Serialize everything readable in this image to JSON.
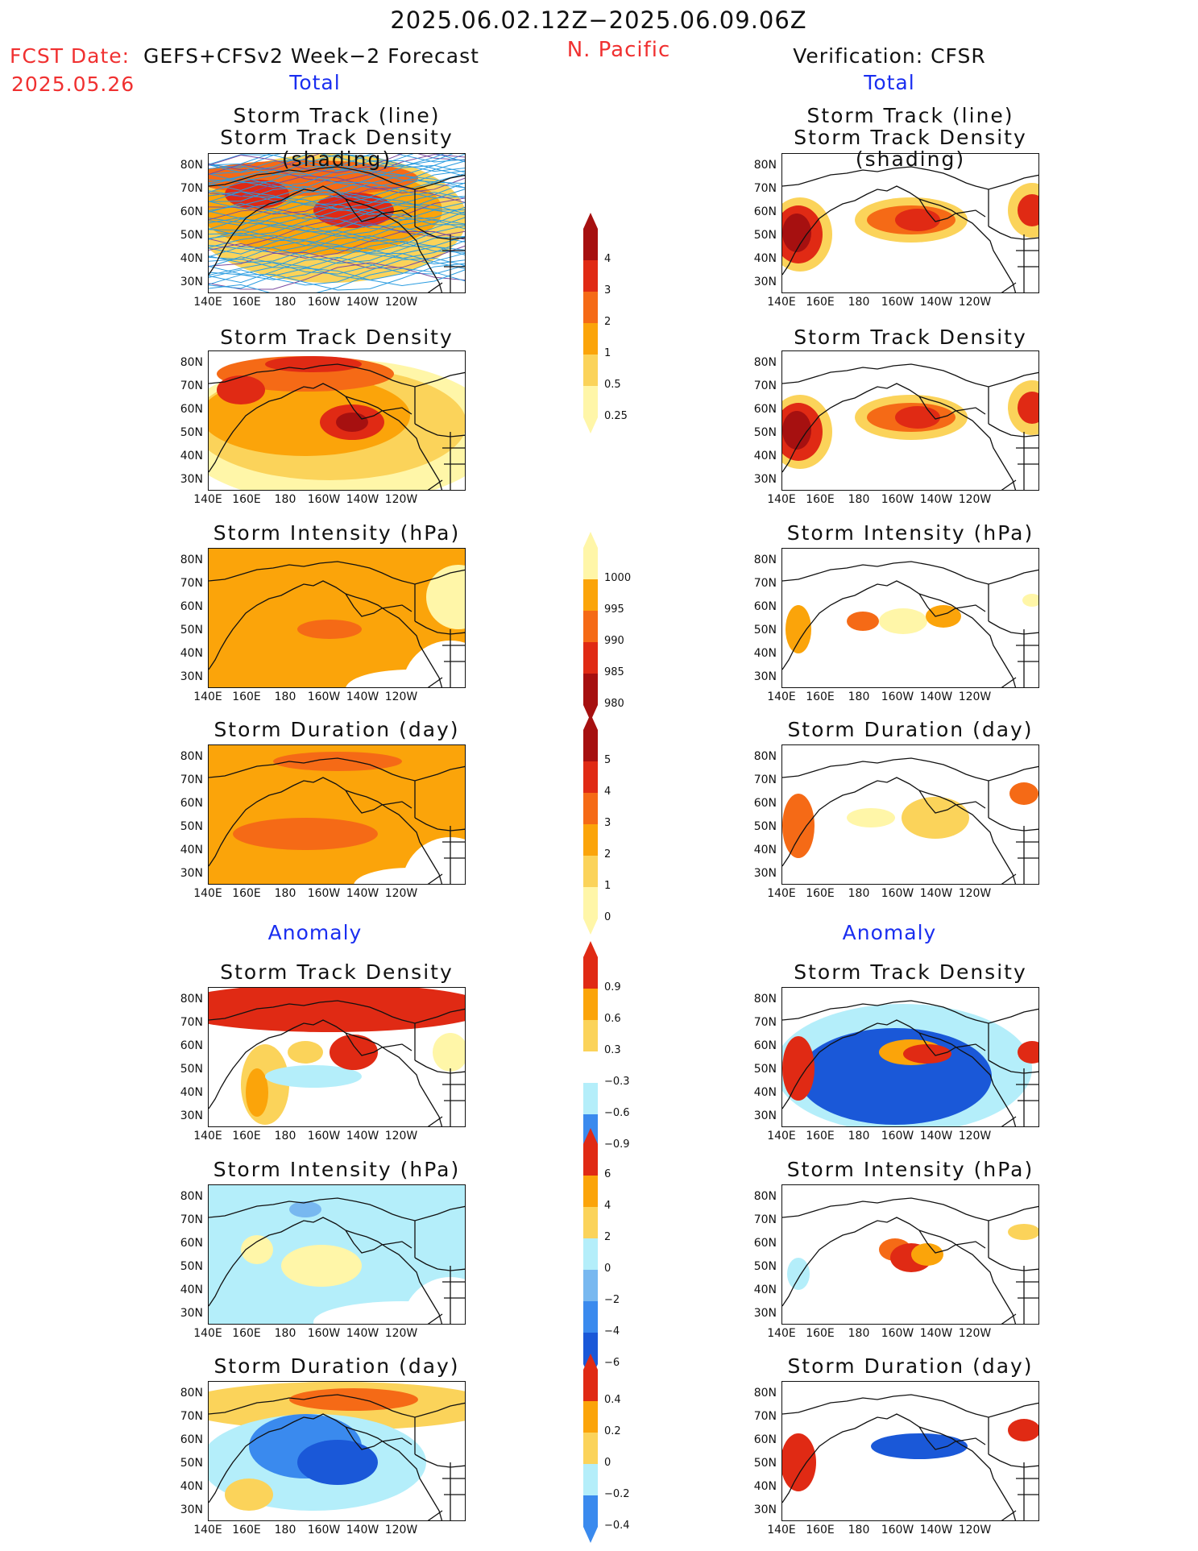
{
  "header": {
    "period": "2025.06.02.12Z−2025.06.09.06Z",
    "region": "N. Pacific",
    "fcst_date_prefix": "FCST Date:",
    "fcst_model": "GEFS+CFSv2 Week−2 Forecast",
    "fcst_date": "2025.05.26",
    "verification": "Verification: CFSR"
  },
  "sections": {
    "total_left": "Total",
    "total_right": "Total",
    "anomaly_left": "Anomaly",
    "anomaly_right": "Anomaly"
  },
  "panel_titles": {
    "track_line": "Storm Track (line)",
    "track_shading": "Storm Track Density (shading)",
    "density": "Storm Track Density",
    "intensity": "Storm Intensity (hPa)",
    "duration": "Storm Duration (day)"
  },
  "axes": {
    "lat_labels": [
      "80N",
      "70N",
      "60N",
      "50N",
      "40N",
      "30N"
    ],
    "lon_labels": [
      "140E",
      "160E",
      "180",
      "160W",
      "140W",
      "120W"
    ]
  },
  "colorbars": {
    "density_total": [
      "4",
      "3",
      "2",
      "1",
      "0.5",
      "0.25"
    ],
    "intensity_total": [
      "1000",
      "995",
      "990",
      "985",
      "980"
    ],
    "duration_total": [
      "5",
      "4",
      "3",
      "2",
      "1",
      "0"
    ],
    "density_anom": [
      "0.9",
      "0.6",
      "0.3",
      "−0.3",
      "−0.6",
      "−0.9"
    ],
    "intensity_anom": [
      "6",
      "4",
      "2",
      "0",
      "−2",
      "−4",
      "−6"
    ],
    "duration_anom": [
      "0.4",
      "0.2",
      "0",
      "−0.2",
      "−0.4"
    ]
  },
  "colors": {
    "pale_yellow": "#fff6a8",
    "light_orange": "#fbd35a",
    "orange": "#fba40a",
    "dark_orange": "#f56a16",
    "red": "#e02a14",
    "dark_red": "#a61010",
    "light_blue": "#b4eefa",
    "mid_blue": "#78b8f0",
    "blue": "#3a8aee",
    "dark_blue": "#1a58d8",
    "track_blue": "#2a9ce0",
    "track_purple": "#7a4aa0"
  }
}
